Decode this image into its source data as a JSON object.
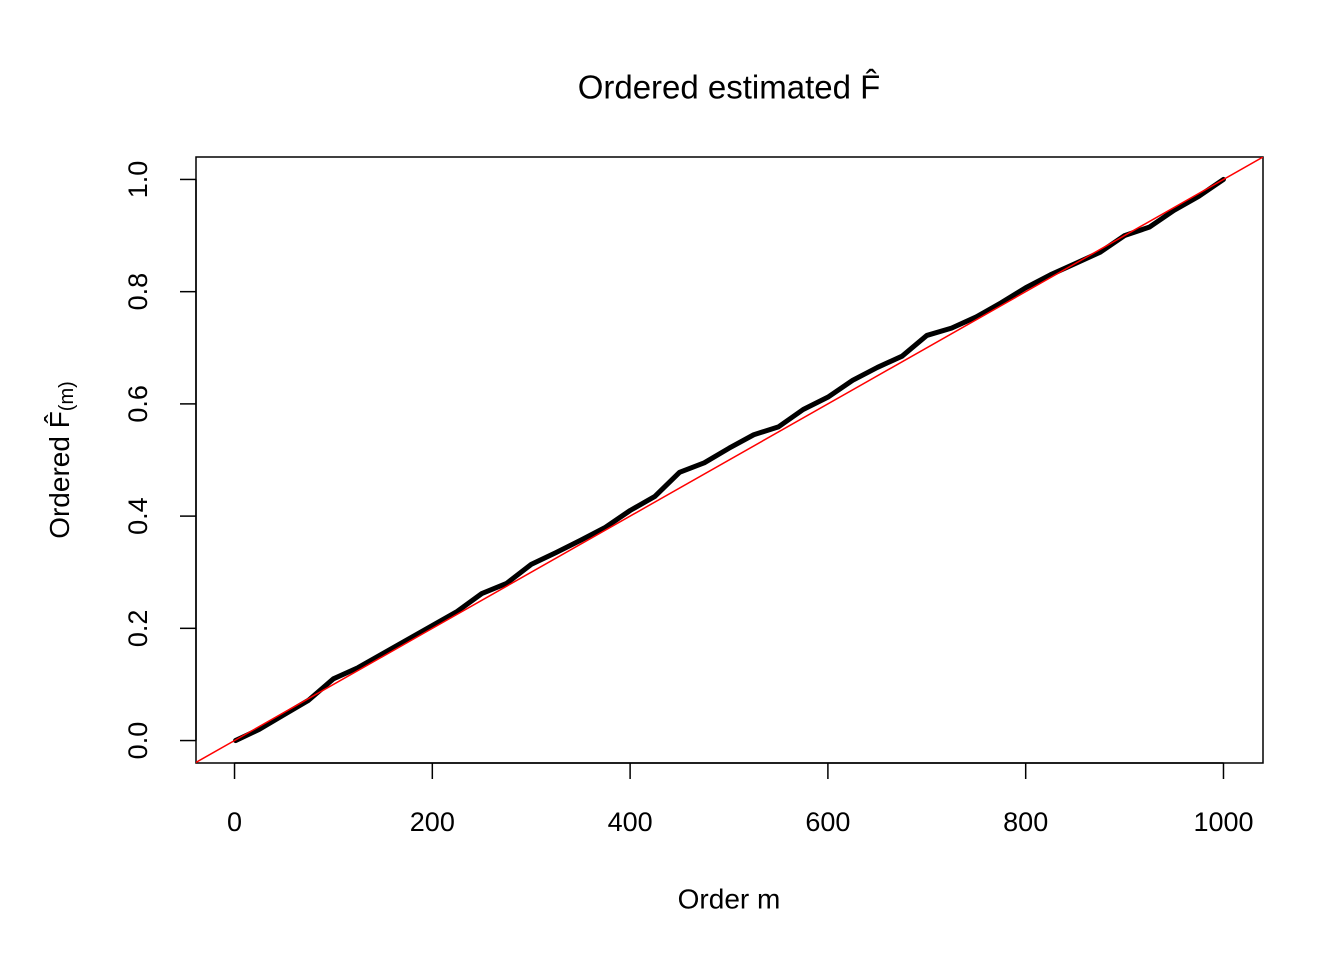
{
  "chart_data": {
    "type": "line",
    "title": "Ordered estimated F̂",
    "xlabel": "Order m",
    "ylabel": "Ordered F̂",
    "ylabel_subscript": "(m)",
    "x": [
      1,
      25,
      50,
      75,
      100,
      125,
      150,
      175,
      200,
      225,
      250,
      275,
      300,
      325,
      350,
      375,
      400,
      425,
      450,
      475,
      500,
      525,
      550,
      575,
      600,
      625,
      650,
      675,
      700,
      725,
      750,
      775,
      800,
      825,
      850,
      875,
      900,
      925,
      950,
      975,
      1000
    ],
    "values": [
      0.0,
      0.02,
      0.046,
      0.072,
      0.11,
      0.13,
      0.155,
      0.18,
      0.205,
      0.23,
      0.262,
      0.28,
      0.314,
      0.335,
      0.357,
      0.38,
      0.41,
      0.435,
      0.478,
      0.495,
      0.521,
      0.545,
      0.559,
      0.59,
      0.612,
      0.642,
      0.665,
      0.685,
      0.722,
      0.735,
      0.755,
      0.78,
      0.807,
      0.83,
      0.85,
      0.87,
      0.9,
      0.915,
      0.945,
      0.97,
      1.0
    ],
    "color": "#000000",
    "reference_line": {
      "slope": 0.001,
      "intercept": 0,
      "color": "#ff0000"
    },
    "xlim": [
      -38.96,
      1039.96
    ],
    "ylim": [
      -0.04,
      1.04
    ],
    "xticks": [
      0,
      200,
      400,
      600,
      800,
      1000
    ],
    "yticks": [
      {
        "value": 0,
        "label": "0.0"
      },
      0.2,
      0.4,
      0.6,
      0.8,
      {
        "value": 1,
        "label": "1.0"
      }
    ]
  }
}
